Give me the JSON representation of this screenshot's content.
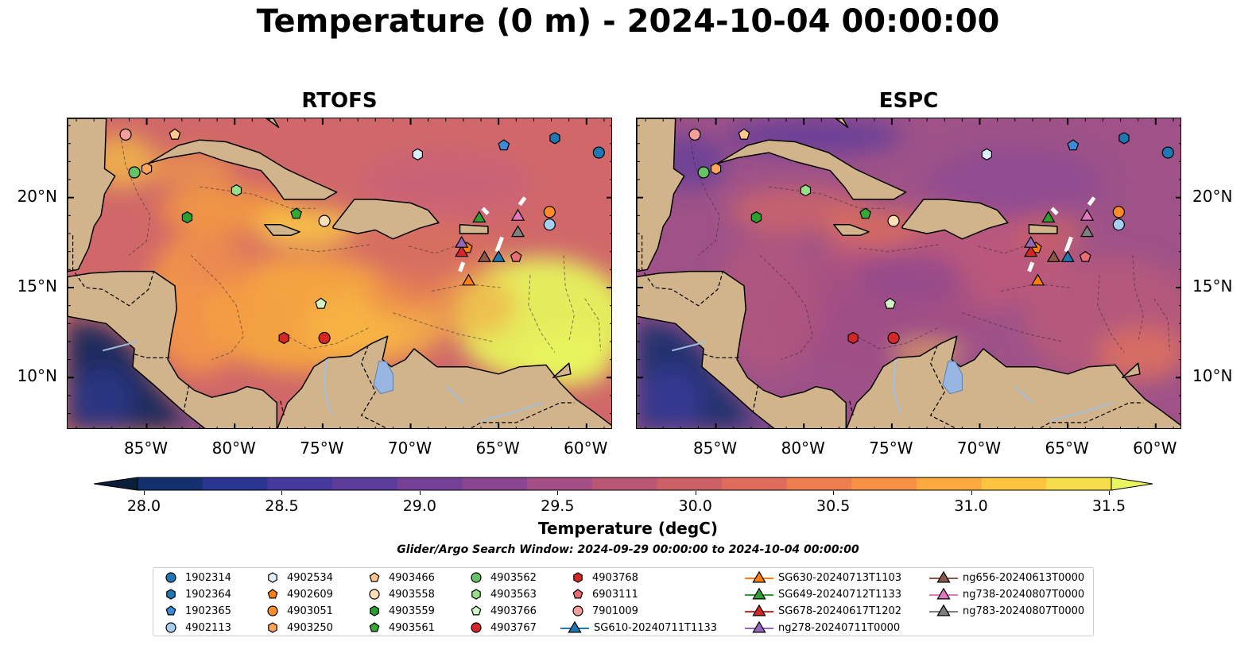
{
  "title": "Temperature (0 m) - 2024-10-04 00:00:00",
  "panels": [
    {
      "name": "RTOFS",
      "style": "warm"
    },
    {
      "name": "ESPC",
      "style": "cool"
    }
  ],
  "axes": {
    "lon_ticks": [
      "85°W",
      "80°W",
      "75°W",
      "70°W",
      "65°W",
      "60°W"
    ],
    "lon_values": [
      -85,
      -80,
      -75,
      -70,
      -65,
      -60
    ],
    "lat_ticks": [
      "20°N",
      "15°N",
      "10°N"
    ],
    "lat_values": [
      20,
      15,
      10
    ],
    "lon_range": [
      -89.5,
      -58.5
    ],
    "lat_range": [
      7.1,
      24.4
    ]
  },
  "colorbar": {
    "label": "Temperature (degC)",
    "ticks": [
      "28.0",
      "28.5",
      "29.0",
      "29.5",
      "30.0",
      "30.5",
      "31.0",
      "31.5"
    ],
    "min": 28.0,
    "max": 31.5,
    "colors": [
      "#0b1f3a",
      "#14306e",
      "#2a3591",
      "#45399e",
      "#5c3d9c",
      "#744197",
      "#8a4690",
      "#a34e84",
      "#b95775",
      "#cc6067",
      "#df6c5c",
      "#ee7e4f",
      "#f79245",
      "#fca93d",
      "#fdc43f",
      "#f6dd4c",
      "#e8f55e"
    ]
  },
  "search_window": "Glider/Argo Search Window: 2024-09-29 00:00:00 to 2024-10-04 00:00:00",
  "chart_data": {
    "type": "scatter",
    "title": "Temperature (0 m) - 2024-10-04 00:00:00",
    "panels": [
      "RTOFS",
      "ESPC"
    ],
    "xlabel": "",
    "ylabel": "",
    "xlim": [
      -89.5,
      -58.5
    ],
    "ylim": [
      7.1,
      24.4
    ],
    "series": [
      {
        "name": "1902314",
        "marker": "circle",
        "color": "#1f77b4",
        "lon": -59.3,
        "lat": 22.5
      },
      {
        "name": "1902364",
        "marker": "hexagon",
        "color": "#1f77b4",
        "lon": -61.8,
        "lat": 23.3
      },
      {
        "name": "1902365",
        "marker": "pentagon",
        "color": "#3d8bd6",
        "lon": -64.7,
        "lat": 22.9
      },
      {
        "name": "4902113",
        "marker": "circle",
        "color": "#a6cff0",
        "lon": -62.1,
        "lat": 18.5
      },
      {
        "name": "4902534",
        "marker": "hexagon",
        "color": "#dbeefa",
        "lon": -69.6,
        "lat": 22.4
      },
      {
        "name": "4902609",
        "marker": "pentagon",
        "color": "#ff7f0e",
        "lon": -66.8,
        "lat": 17.2
      },
      {
        "name": "4903051",
        "marker": "circle",
        "color": "#ff8c2a",
        "lon": -62.1,
        "lat": 19.2
      },
      {
        "name": "4903250",
        "marker": "hexagon",
        "color": "#ffa45c",
        "lon": -85.0,
        "lat": 21.6
      },
      {
        "name": "4903466",
        "marker": "pentagon",
        "color": "#ffc88f",
        "lon": -83.4,
        "lat": 23.5
      },
      {
        "name": "4903558",
        "marker": "circle",
        "color": "#ffdfb8",
        "lon": -74.9,
        "lat": 18.7
      },
      {
        "name": "4903559",
        "marker": "hexagon",
        "color": "#2ca02c",
        "lon": -82.7,
        "lat": 18.9
      },
      {
        "name": "4903561",
        "marker": "pentagon",
        "color": "#33aa33",
        "lon": -76.5,
        "lat": 19.1
      },
      {
        "name": "4903562",
        "marker": "circle",
        "color": "#66c266",
        "lon": -85.7,
        "lat": 21.4
      },
      {
        "name": "4903563",
        "marker": "hexagon",
        "color": "#98df8a",
        "lon": -79.9,
        "lat": 20.4
      },
      {
        "name": "4903766",
        "marker": "pentagon",
        "color": "#d3f5c6",
        "lon": -75.1,
        "lat": 14.1
      },
      {
        "name": "4903767",
        "marker": "circle",
        "color": "#d62728",
        "lon": -74.9,
        "lat": 12.2
      },
      {
        "name": "4903768",
        "marker": "hexagon",
        "color": "#d62728",
        "lon": -77.2,
        "lat": 12.2
      },
      {
        "name": "6903111",
        "marker": "pentagon",
        "color": "#e86e72",
        "lon": -64.0,
        "lat": 16.7
      },
      {
        "name": "7901009",
        "marker": "circle",
        "color": "#f4a09a",
        "lon": -86.2,
        "lat": 23.5
      },
      {
        "name": "SG610-20240711T1133",
        "marker": "triangle",
        "color": "#1f77b4",
        "lon": -65.0,
        "lat": 16.7
      },
      {
        "name": "SG630-20240713T1103",
        "marker": "triangle",
        "color": "#ff7f0e",
        "lon": -66.7,
        "lat": 15.4
      },
      {
        "name": "SG649-20240712T1133",
        "marker": "triangle",
        "color": "#2ca02c",
        "lon": -66.1,
        "lat": 18.9
      },
      {
        "name": "SG678-20240617T1202",
        "marker": "triangle",
        "color": "#d62728",
        "lon": -67.1,
        "lat": 17.0
      },
      {
        "name": "ng278-20240711T0000",
        "marker": "triangle",
        "color": "#9467bd",
        "lon": -67.1,
        "lat": 17.5
      },
      {
        "name": "ng656-20240613T0000",
        "marker": "triangle",
        "color": "#8c564b",
        "lon": -65.8,
        "lat": 16.7
      },
      {
        "name": "ng738-20240807T0000",
        "marker": "triangle",
        "color": "#e377c2",
        "lon": -63.9,
        "lat": 19.0
      },
      {
        "name": "ng783-20240807T0000",
        "marker": "triangle",
        "color": "#7f7f7f",
        "lon": -63.9,
        "lat": 18.1
      }
    ],
    "colorbar_range": [
      28.0,
      31.5
    ]
  }
}
